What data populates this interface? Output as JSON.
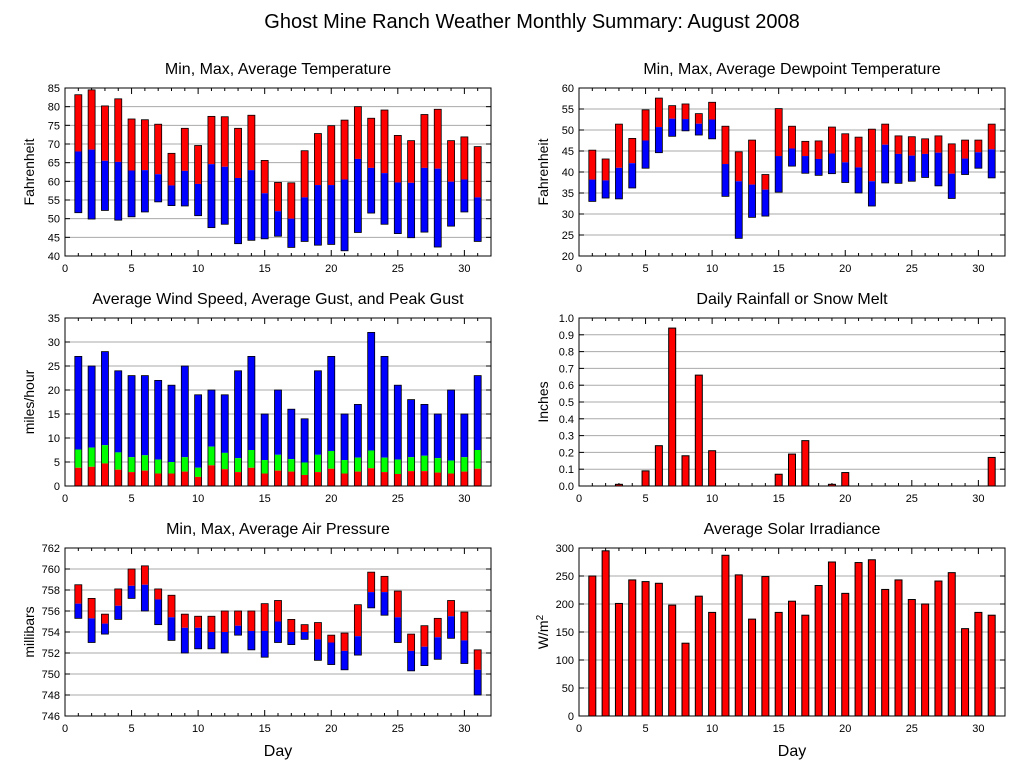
{
  "page_title": "Ghost Mine Ranch Weather Monthly Summary: August 2008",
  "colors": {
    "max": "#ff0000",
    "min": "#0000ff",
    "mid": "#00ff00",
    "grid": "#aaaaaa",
    "outline": "#000000"
  },
  "chart_data": [
    {
      "id": "temp",
      "type": "bar",
      "title": "Min, Max, Average Temperature",
      "xlabel": "",
      "ylabel": "Fahrenheit",
      "xlim": [
        0,
        32
      ],
      "ylim": [
        40,
        85
      ],
      "yticks": [
        40,
        45,
        50,
        55,
        60,
        65,
        70,
        75,
        80,
        85
      ],
      "xticks": [
        0,
        5,
        10,
        15,
        20,
        25,
        30
      ],
      "days": [
        1,
        2,
        3,
        4,
        5,
        6,
        7,
        8,
        9,
        10,
        11,
        12,
        13,
        14,
        15,
        16,
        17,
        18,
        19,
        20,
        21,
        22,
        23,
        24,
        25,
        26,
        27,
        28,
        29,
        30,
        31
      ],
      "series": [
        {
          "name": "Max",
          "values": [
            83.2,
            84.5,
            80.2,
            82.1,
            76.7,
            76.5,
            75.3,
            67.5,
            74.2,
            69.6,
            77.4,
            77.3,
            74.2,
            77.7,
            65.6,
            59.7,
            59.6,
            68.2,
            72.8,
            74.9,
            76.4,
            80.0,
            76.9,
            79.1,
            72.3,
            70.9,
            77.9,
            79.3,
            70.9,
            71.9,
            69.3
          ]
        },
        {
          "name": "Average",
          "values": [
            68.0,
            68.5,
            65.5,
            65.2,
            62.9,
            63.0,
            61.9,
            58.9,
            62.8,
            59.3,
            64.6,
            63.9,
            60.9,
            63.0,
            56.8,
            52.0,
            50.0,
            55.7,
            59.0,
            59.0,
            60.5,
            66.0,
            63.6,
            62.2,
            59.7,
            59.6,
            63.6,
            63.4,
            59.9,
            60.5,
            55.7
          ]
        },
        {
          "name": "Min",
          "values": [
            51.6,
            49.9,
            52.2,
            49.6,
            50.5,
            51.8,
            54.5,
            53.5,
            53.4,
            50.8,
            47.6,
            48.5,
            43.3,
            44.2,
            44.6,
            45.3,
            42.3,
            43.9,
            42.9,
            43.1,
            41.4,
            46.3,
            51.5,
            48.5,
            46.0,
            44.9,
            46.4,
            42.4,
            48.0,
            51.8,
            43.9
          ]
        }
      ]
    },
    {
      "id": "dew",
      "type": "bar",
      "title": "Min, Max, Average Dewpoint Temperature",
      "xlabel": "",
      "ylabel": "Fahrenheit",
      "xlim": [
        0,
        32
      ],
      "ylim": [
        20,
        60
      ],
      "yticks": [
        20,
        25,
        30,
        35,
        40,
        45,
        50,
        55,
        60
      ],
      "xticks": [
        0,
        5,
        10,
        15,
        20,
        25,
        30
      ],
      "days": [
        1,
        2,
        3,
        4,
        5,
        6,
        7,
        8,
        9,
        10,
        11,
        12,
        13,
        14,
        15,
        16,
        17,
        18,
        19,
        20,
        21,
        22,
        23,
        24,
        25,
        26,
        27,
        28,
        29,
        30,
        31
      ],
      "series": [
        {
          "name": "Max",
          "values": [
            45.2,
            43.1,
            51.4,
            48.0,
            54.8,
            57.6,
            55.8,
            56.2,
            53.9,
            56.6,
            50.9,
            44.8,
            47.6,
            39.4,
            55.1,
            50.9,
            47.3,
            47.4,
            50.7,
            49.1,
            48.3,
            50.2,
            51.4,
            48.6,
            48.4,
            47.9,
            48.6,
            46.7,
            47.6,
            47.6,
            51.4
          ]
        },
        {
          "name": "Average",
          "values": [
            38.2,
            38.0,
            41.0,
            42.1,
            47.5,
            50.7,
            52.7,
            52.6,
            51.5,
            52.5,
            41.9,
            37.8,
            37.0,
            35.8,
            43.8,
            45.6,
            43.8,
            43.1,
            44.4,
            42.3,
            41.1,
            37.8,
            46.5,
            44.3,
            43.9,
            44.3,
            44.6,
            39.6,
            43.2,
            44.7,
            45.4
          ]
        },
        {
          "name": "Min",
          "values": [
            33.0,
            33.8,
            33.6,
            36.2,
            40.9,
            44.6,
            48.5,
            49.8,
            48.8,
            47.9,
            34.2,
            24.2,
            29.2,
            29.5,
            35.2,
            41.4,
            39.7,
            39.2,
            39.6,
            37.5,
            35.0,
            31.9,
            37.4,
            37.3,
            37.8,
            38.7,
            36.7,
            33.7,
            39.4,
            40.9,
            38.6
          ]
        }
      ]
    },
    {
      "id": "wind",
      "type": "bar",
      "title": "Average Wind Speed, Average Gust, and Peak Gust",
      "xlabel": "",
      "ylabel": "miles/hour",
      "xlim": [
        0,
        32
      ],
      "ylim": [
        0,
        35
      ],
      "yticks": [
        0,
        5,
        10,
        15,
        20,
        25,
        30,
        35
      ],
      "xticks": [
        0,
        5,
        10,
        15,
        20,
        25,
        30
      ],
      "days": [
        1,
        2,
        3,
        4,
        5,
        6,
        7,
        8,
        9,
        10,
        11,
        12,
        13,
        14,
        15,
        16,
        17,
        18,
        19,
        20,
        21,
        22,
        23,
        24,
        25,
        26,
        27,
        28,
        29,
        30,
        31
      ],
      "series": [
        {
          "name": "Peak Gust",
          "values": [
            27,
            25,
            28,
            24,
            23,
            23,
            22,
            21,
            25,
            19,
            20,
            19,
            24,
            27,
            15,
            20,
            16,
            14,
            24,
            27,
            15,
            17,
            32,
            27,
            21,
            18,
            17,
            15,
            20,
            15,
            23
          ]
        },
        {
          "name": "Average Gust",
          "values": [
            7.6,
            8.0,
            8.5,
            7.0,
            6.0,
            6.4,
            5.5,
            5.0,
            6.0,
            3.8,
            8.2,
            6.9,
            5.8,
            7.5,
            5.4,
            6.5,
            5.6,
            4.9,
            6.5,
            7.3,
            5.4,
            5.9,
            7.4,
            5.9,
            5.5,
            6.0,
            6.3,
            5.8,
            5.3,
            6.0,
            7.5
          ]
        },
        {
          "name": "Average Wind Speed",
          "values": [
            3.8,
            4.0,
            4.7,
            3.4,
            2.9,
            3.2,
            2.6,
            2.6,
            3.0,
            1.9,
            4.3,
            3.5,
            2.9,
            3.8,
            2.6,
            3.2,
            3.0,
            2.3,
            2.9,
            3.6,
            2.6,
            3.0,
            3.7,
            2.9,
            2.5,
            3.1,
            3.1,
            2.8,
            2.6,
            3.0,
            3.6
          ]
        }
      ]
    },
    {
      "id": "rain",
      "type": "bar",
      "title": "Daily Rainfall or Snow Melt",
      "xlabel": "",
      "ylabel": "Inches",
      "xlim": [
        0,
        32
      ],
      "ylim": [
        0,
        1.0
      ],
      "yticks": [
        0.0,
        0.1,
        0.2,
        0.3,
        0.4,
        0.5,
        0.6,
        0.7,
        0.8,
        0.9,
        1.0
      ],
      "ytick_labels": [
        "0.0",
        "0.1",
        "0.2",
        "0.3",
        "0.4",
        "0.5",
        "0.6",
        "0.7",
        "0.8",
        "0.9",
        "1.0"
      ],
      "xticks": [
        0,
        5,
        10,
        15,
        20,
        25,
        30
      ],
      "days": [
        1,
        2,
        3,
        4,
        5,
        6,
        7,
        8,
        9,
        10,
        11,
        12,
        13,
        14,
        15,
        16,
        17,
        18,
        19,
        20,
        21,
        22,
        23,
        24,
        25,
        26,
        27,
        28,
        29,
        30,
        31
      ],
      "series": [
        {
          "name": "Rainfall",
          "values": [
            0,
            0,
            0.01,
            0,
            0.09,
            0.24,
            0.94,
            0.18,
            0.66,
            0.21,
            0,
            0,
            0,
            0,
            0.07,
            0.19,
            0.27,
            0,
            0.01,
            0.08,
            0,
            0,
            0,
            0,
            0,
            0,
            0,
            0,
            0,
            0,
            0.17
          ]
        }
      ]
    },
    {
      "id": "press",
      "type": "bar",
      "title": "Min, Max, Average Air Pressure",
      "xlabel": "Day",
      "ylabel": "millibars",
      "xlim": [
        0,
        32
      ],
      "ylim": [
        746,
        762
      ],
      "yticks": [
        746,
        748,
        750,
        752,
        754,
        756,
        758,
        760,
        762
      ],
      "xticks": [
        0,
        5,
        10,
        15,
        20,
        25,
        30
      ],
      "days": [
        1,
        2,
        3,
        4,
        5,
        6,
        7,
        8,
        9,
        10,
        11,
        12,
        13,
        14,
        15,
        16,
        17,
        18,
        19,
        20,
        21,
        22,
        23,
        24,
        25,
        26,
        27,
        28,
        29,
        30,
        31
      ],
      "series": [
        {
          "name": "Max",
          "values": [
            758.5,
            757.2,
            755.7,
            758.1,
            760.0,
            760.3,
            758.1,
            757.5,
            755.7,
            755.5,
            755.5,
            756.0,
            756.0,
            756.0,
            756.7,
            757.0,
            755.2,
            754.7,
            754.9,
            753.7,
            753.9,
            756.6,
            759.7,
            759.3,
            757.9,
            753.8,
            754.6,
            755.3,
            757.0,
            755.9,
            752.3
          ]
        },
        {
          "name": "Average",
          "values": [
            756.7,
            755.3,
            754.8,
            756.5,
            758.4,
            758.5,
            757.1,
            755.4,
            754.4,
            754.4,
            754.0,
            754.0,
            754.6,
            754.1,
            754.1,
            755.0,
            754.0,
            754.0,
            753.3,
            753.0,
            752.2,
            753.6,
            757.8,
            757.8,
            755.4,
            752.2,
            752.6,
            753.5,
            755.5,
            753.2,
            750.4
          ]
        },
        {
          "name": "Min",
          "values": [
            755.3,
            753.0,
            753.8,
            755.2,
            757.2,
            756.0,
            754.7,
            753.2,
            752.0,
            752.4,
            752.4,
            752.0,
            753.7,
            752.3,
            751.6,
            753.0,
            752.8,
            753.3,
            751.3,
            750.9,
            750.4,
            751.8,
            756.3,
            755.6,
            753.0,
            750.3,
            750.8,
            751.4,
            753.4,
            751.0,
            748.0
          ]
        }
      ]
    },
    {
      "id": "solar",
      "type": "bar",
      "title": "Average Solar Irradiance",
      "xlabel": "Day",
      "ylabel": "W/m",
      "ylabel_sup": "2",
      "xlim": [
        0,
        32
      ],
      "ylim": [
        0,
        300
      ],
      "yticks": [
        0,
        50,
        100,
        150,
        200,
        250,
        300
      ],
      "xticks": [
        0,
        5,
        10,
        15,
        20,
        25,
        30
      ],
      "days": [
        1,
        2,
        3,
        4,
        5,
        6,
        7,
        8,
        9,
        10,
        11,
        12,
        13,
        14,
        15,
        16,
        17,
        18,
        19,
        20,
        21,
        22,
        23,
        24,
        25,
        26,
        27,
        28,
        29,
        30,
        31
      ],
      "series": [
        {
          "name": "Solar",
          "values": [
            250,
            295,
            201,
            243,
            240,
            237,
            198,
            130,
            214,
            185,
            287,
            252,
            173,
            249,
            185,
            205,
            180,
            233,
            275,
            219,
            274,
            279,
            226,
            243,
            208,
            200,
            241,
            256,
            156,
            185,
            180
          ]
        }
      ]
    }
  ]
}
